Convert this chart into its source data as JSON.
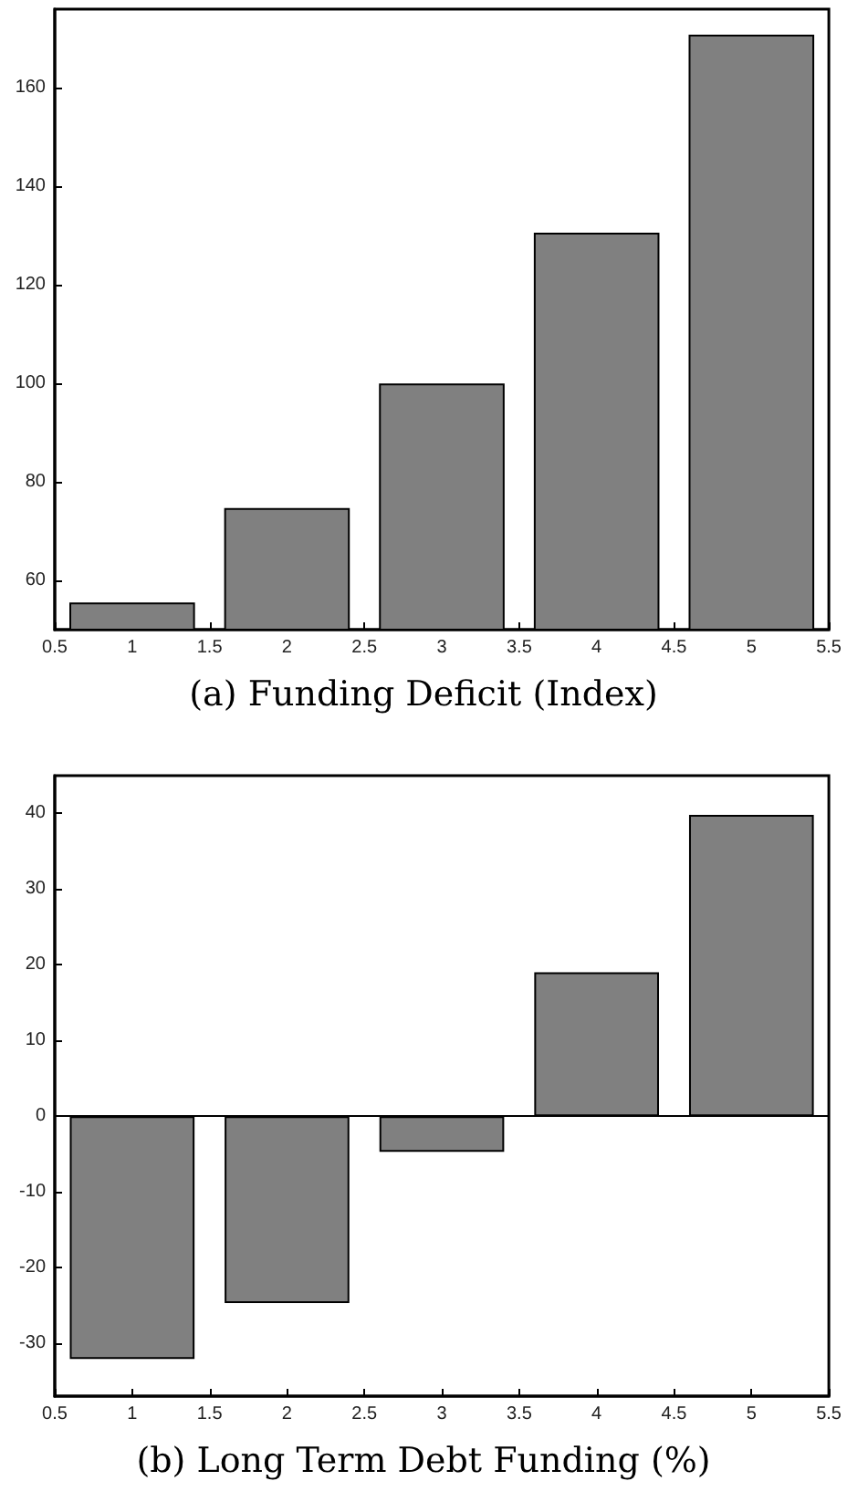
{
  "chart_data": [
    {
      "type": "bar",
      "title": "(a) Funding Deficit (Index)",
      "x": [
        1,
        2,
        3,
        4,
        5
      ],
      "values": [
        55.5,
        74.7,
        100,
        130.6,
        170.8
      ],
      "color": "#808080",
      "xlim": [
        0.5,
        5.5
      ],
      "xticks": [
        0.5,
        1,
        1.5,
        2,
        2.5,
        3,
        3.5,
        4,
        4.5,
        5,
        5.5
      ],
      "ylim": [
        50,
        176
      ],
      "yticks": [
        60,
        80,
        100,
        120,
        140,
        160
      ],
      "grid": false
    },
    {
      "type": "bar",
      "title": "(b) Long Term Debt Funding (%)",
      "x": [
        1,
        2,
        3,
        4,
        5
      ],
      "values": [
        -32.1,
        -24.7,
        -4.7,
        19,
        39.8
      ],
      "color": "#808080",
      "xlim": [
        0.5,
        5.5
      ],
      "xticks": [
        0.5,
        1,
        1.5,
        2,
        2.5,
        3,
        3.5,
        4,
        4.5,
        5,
        5.5
      ],
      "ylim": [
        -37,
        45
      ],
      "yticks": [
        -30,
        -20,
        -10,
        0,
        10,
        20,
        30,
        40
      ],
      "ref_lines": [
        {
          "axis": "y",
          "value": 0,
          "color": "#000000"
        }
      ],
      "grid": false
    }
  ]
}
